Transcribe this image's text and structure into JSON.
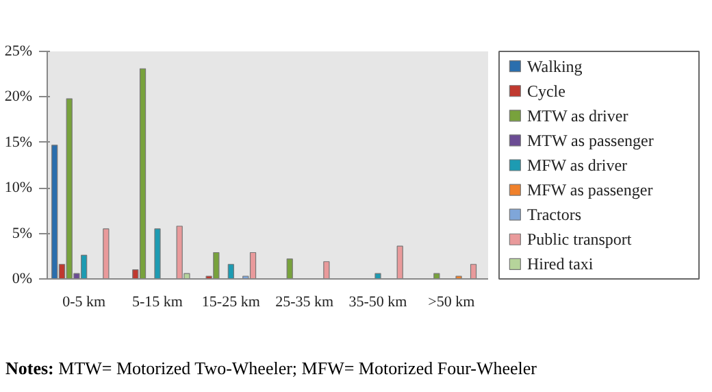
{
  "chart_data": {
    "type": "bar",
    "categories": [
      "0-5 km",
      "5-15 km",
      "15-25 km",
      "25-35 km",
      "35-50 km",
      ">50 km"
    ],
    "series": [
      {
        "name": "Walking",
        "color": "#2a6ead",
        "values": [
          14.7,
          null,
          null,
          null,
          null,
          null
        ]
      },
      {
        "name": "Cycle",
        "color": "#c0392f",
        "values": [
          1.6,
          1.0,
          0.3,
          null,
          null,
          null
        ]
      },
      {
        "name": "MTW as driver",
        "color": "#78a23c",
        "values": [
          19.8,
          23.1,
          2.9,
          2.2,
          null,
          0.6
        ]
      },
      {
        "name": "MTW as passenger",
        "color": "#6b4c94",
        "values": [
          0.6,
          null,
          null,
          null,
          null,
          null
        ]
      },
      {
        "name": "MFW as driver",
        "color": "#1d9bb2",
        "values": [
          2.6,
          5.5,
          1.6,
          null,
          0.6,
          null
        ]
      },
      {
        "name": "MFW as passenger",
        "color": "#f0812b",
        "values": [
          null,
          null,
          null,
          null,
          null,
          0.3
        ]
      },
      {
        "name": "Tractors",
        "color": "#7fa6d9",
        "values": [
          null,
          null,
          0.3,
          null,
          null,
          null
        ]
      },
      {
        "name": "Public transport",
        "color": "#e99a9b",
        "values": [
          5.5,
          5.8,
          2.9,
          1.9,
          3.6,
          1.6
        ]
      },
      {
        "name": "Hired taxi",
        "color": "#b6d49b",
        "values": [
          null,
          0.6,
          null,
          null,
          null,
          null
        ]
      }
    ],
    "ylim": [
      0,
      25
    ],
    "yticks": [
      {
        "value": 0,
        "label": "0%"
      },
      {
        "value": 5,
        "label": "5%"
      },
      {
        "value": 10,
        "label": "10%"
      },
      {
        "value": 15,
        "label": "15%"
      },
      {
        "value": 20,
        "label": "20%"
      },
      {
        "value": 25,
        "label": "25%"
      }
    ],
    "grid": false,
    "legend": "right",
    "annotations": [
      "Notes: MTW= Motorized Two-Wheeler; MFW= Motorized Four-Wheeler"
    ]
  }
}
